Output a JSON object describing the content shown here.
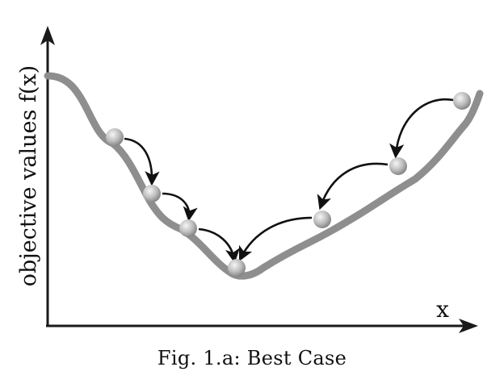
{
  "figure": {
    "y_axis_label": "objective values f(x)",
    "x_axis_label": "x",
    "caption": "Fig. 1.a: Best Case"
  },
  "colors": {
    "axis": "#1a1a1a",
    "curve": "#8e8e8e",
    "arrow": "#111111",
    "ball_light": "#f4f4f4",
    "ball_dark": "#8a8a8a"
  }
}
